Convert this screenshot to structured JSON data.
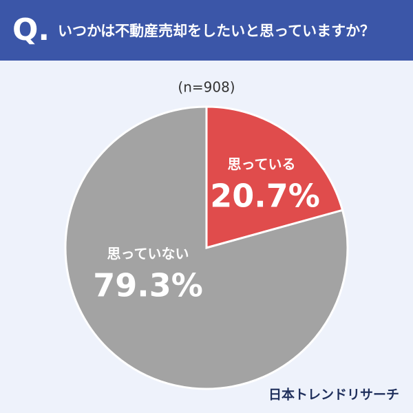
{
  "chart_data": {
    "type": "pie",
    "q_label": "Q.",
    "title": "いつかは不動産売却をしたいと思っていますか？",
    "subtitle": "(n=908)",
    "categories": [
      "思っている",
      "思っていない"
    ],
    "values": [
      20.7,
      79.3
    ],
    "value_labels": [
      "20.7%",
      "79.3%"
    ],
    "colors": [
      "#e04c4c",
      "#a3a3a3"
    ],
    "source": "日本トレンドリサーチ"
  }
}
